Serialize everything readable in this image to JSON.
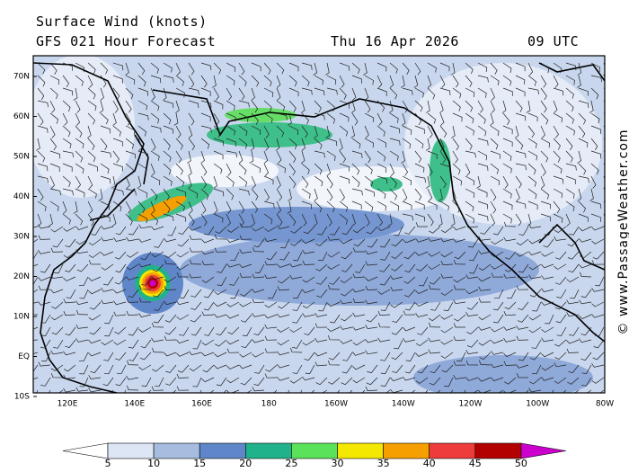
{
  "header": {
    "title": "Surface Wind (knots)",
    "model": "GFS 021 Hour Forecast",
    "date": "Thu 16 Apr 2026",
    "time": "09 UTC"
  },
  "map": {
    "lat_labels": [
      "70N",
      "60N",
      "50N",
      "40N",
      "30N",
      "20N",
      "10N",
      "EQ",
      "10S"
    ],
    "lon_labels": [
      "120E",
      "140E",
      "160E",
      "180",
      "160W",
      "140W",
      "120W",
      "100W",
      "80W"
    ]
  },
  "colorbar": {
    "ticks": [
      5,
      10,
      15,
      20,
      25,
      30,
      35,
      40,
      45,
      50
    ],
    "colors": [
      "#ffffff",
      "#dde6f4",
      "#a6bde0",
      "#5f86c9",
      "#20b38b",
      "#5ae25a",
      "#f5e800",
      "#f5a000",
      "#ee3c3c",
      "#b30000",
      "#cc00cc"
    ]
  },
  "watermark": "© www.PassageWeather.com"
}
